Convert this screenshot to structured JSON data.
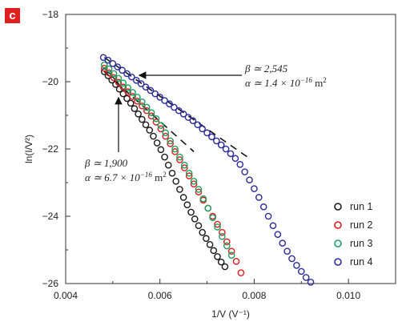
{
  "panel_letter": "c",
  "chart_data": {
    "type": "scatter",
    "xlabel": "1/V (V⁻¹)",
    "ylabel": "ln(I/V²)",
    "xlim": [
      0.004,
      0.011
    ],
    "ylim": [
      -26,
      -18
    ],
    "xticks": [
      0.004,
      0.006,
      0.008,
      0.01
    ],
    "xtick_labels": [
      "0.004",
      "0.006",
      "0.008",
      "0.010"
    ],
    "yticks": [
      -18,
      -20,
      -22,
      -24,
      -26
    ],
    "ytick_labels": [
      "−18",
      "−20",
      "−22",
      "−24",
      "−26"
    ],
    "legend_position": "lower-right",
    "series": [
      {
        "name": "run 1",
        "color": "#1a1a1a",
        "marker": "open-circle",
        "x": [
          0.00482,
          0.0049,
          0.00498,
          0.00506,
          0.00514,
          0.00522,
          0.0053,
          0.00538,
          0.00546,
          0.00554,
          0.00562,
          0.0057,
          0.00578,
          0.00586,
          0.00594,
          0.00602,
          0.0061,
          0.00618,
          0.00626,
          0.00634,
          0.00642,
          0.0065,
          0.00658,
          0.00666,
          0.00674,
          0.00682,
          0.0069,
          0.00698,
          0.00706,
          0.00714,
          0.00722,
          0.0073,
          0.00738
        ],
        "y": [
          -19.7,
          -19.82,
          -19.95,
          -20.08,
          -20.22,
          -20.36,
          -20.5,
          -20.64,
          -20.8,
          -20.96,
          -21.12,
          -21.28,
          -21.44,
          -21.62,
          -21.82,
          -22.02,
          -22.24,
          -22.48,
          -22.72,
          -22.96,
          -23.2,
          -23.44,
          -23.66,
          -23.88,
          -24.08,
          -24.28,
          -24.48,
          -24.66,
          -24.84,
          -25.02,
          -25.2,
          -25.36,
          -25.5
        ]
      },
      {
        "name": "run 2",
        "color": "#e01a1a",
        "marker": "open-circle",
        "x": [
          0.00482,
          0.00492,
          0.00502,
          0.00512,
          0.00522,
          0.00532,
          0.00542,
          0.00552,
          0.00562,
          0.00572,
          0.00582,
          0.00592,
          0.00602,
          0.00612,
          0.00622,
          0.00632,
          0.00642,
          0.00652,
          0.00662,
          0.00672,
          0.00682,
          0.00692,
          0.00702,
          0.00712,
          0.00722,
          0.00732,
          0.00742,
          0.00752,
          0.00762,
          0.00772
        ],
        "y": [
          -19.6,
          -19.74,
          -19.88,
          -20.02,
          -20.16,
          -20.3,
          -20.44,
          -20.58,
          -20.72,
          -20.86,
          -21.02,
          -21.2,
          -21.4,
          -21.62,
          -21.84,
          -22.08,
          -22.32,
          -22.56,
          -22.8,
          -23.04,
          -23.28,
          -23.52,
          -23.76,
          -24.0,
          -24.24,
          -24.48,
          -24.76,
          -25.04,
          -25.34,
          -25.68
        ]
      },
      {
        "name": "run 3",
        "color": "#1aa060",
        "marker": "open-circle",
        "x": [
          0.00482,
          0.00492,
          0.00502,
          0.00512,
          0.00522,
          0.00532,
          0.00542,
          0.00552,
          0.00562,
          0.00572,
          0.00582,
          0.00592,
          0.00602,
          0.00612,
          0.00622,
          0.00632,
          0.00642,
          0.00652,
          0.00662,
          0.00672,
          0.00682,
          0.00692,
          0.00702,
          0.00712,
          0.00722,
          0.00732,
          0.00742,
          0.00752
        ],
        "y": [
          -19.5,
          -19.62,
          -19.76,
          -19.9,
          -20.04,
          -20.18,
          -20.32,
          -20.46,
          -20.6,
          -20.76,
          -20.92,
          -21.1,
          -21.3,
          -21.52,
          -21.76,
          -22.0,
          -22.24,
          -22.48,
          -22.72,
          -22.96,
          -23.2,
          -23.48,
          -23.76,
          -24.04,
          -24.32,
          -24.6,
          -24.88,
          -25.16
        ]
      },
      {
        "name": "run 4",
        "color": "#2a2a9a",
        "marker": "open-circle",
        "x": [
          0.0048,
          0.0049,
          0.005,
          0.0051,
          0.0052,
          0.0053,
          0.0054,
          0.0055,
          0.0056,
          0.0057,
          0.0058,
          0.0059,
          0.006,
          0.0061,
          0.0062,
          0.0063,
          0.0064,
          0.0065,
          0.0066,
          0.0067,
          0.0068,
          0.0069,
          0.007,
          0.0071,
          0.0072,
          0.0073,
          0.0074,
          0.0075,
          0.0076,
          0.0077,
          0.0078,
          0.0079,
          0.008,
          0.0081,
          0.0082,
          0.0083,
          0.0084,
          0.0085,
          0.0086,
          0.0087,
          0.0088,
          0.0089,
          0.009,
          0.0091,
          0.0092
        ],
        "y": [
          -19.28,
          -19.36,
          -19.46,
          -19.56,
          -19.66,
          -19.76,
          -19.86,
          -19.96,
          -20.06,
          -20.16,
          -20.26,
          -20.36,
          -20.46,
          -20.56,
          -20.66,
          -20.76,
          -20.86,
          -20.96,
          -21.06,
          -21.16,
          -21.28,
          -21.4,
          -21.52,
          -21.64,
          -21.76,
          -21.88,
          -22.0,
          -22.14,
          -22.28,
          -22.46,
          -22.68,
          -22.92,
          -23.18,
          -23.44,
          -23.72,
          -24.0,
          -24.28,
          -24.54,
          -24.8,
          -25.04,
          -25.26,
          -25.46,
          -25.64,
          -25.82,
          -25.96
        ]
      }
    ],
    "fit_lines": [
      {
        "x": [
          0.00482,
          0.00672
        ],
        "y": [
          -19.7,
          -22.08
        ]
      },
      {
        "x": [
          0.00482,
          0.00792
        ],
        "y": [
          -19.28,
          -22.3
        ]
      }
    ],
    "annotations": [
      {
        "line1": "β ≃ 2,545",
        "line2_prefix": "α ≃ 1.4 × 10",
        "line2_exp": "−16",
        "line2_unit": " m",
        "line2_unit_exp": "2"
      },
      {
        "line1": "β ≃ 1,900",
        "line2_prefix": "α ≃ 6.7 × 10",
        "line2_exp": "−16",
        "line2_unit": " m",
        "line2_unit_exp": "2"
      }
    ]
  }
}
